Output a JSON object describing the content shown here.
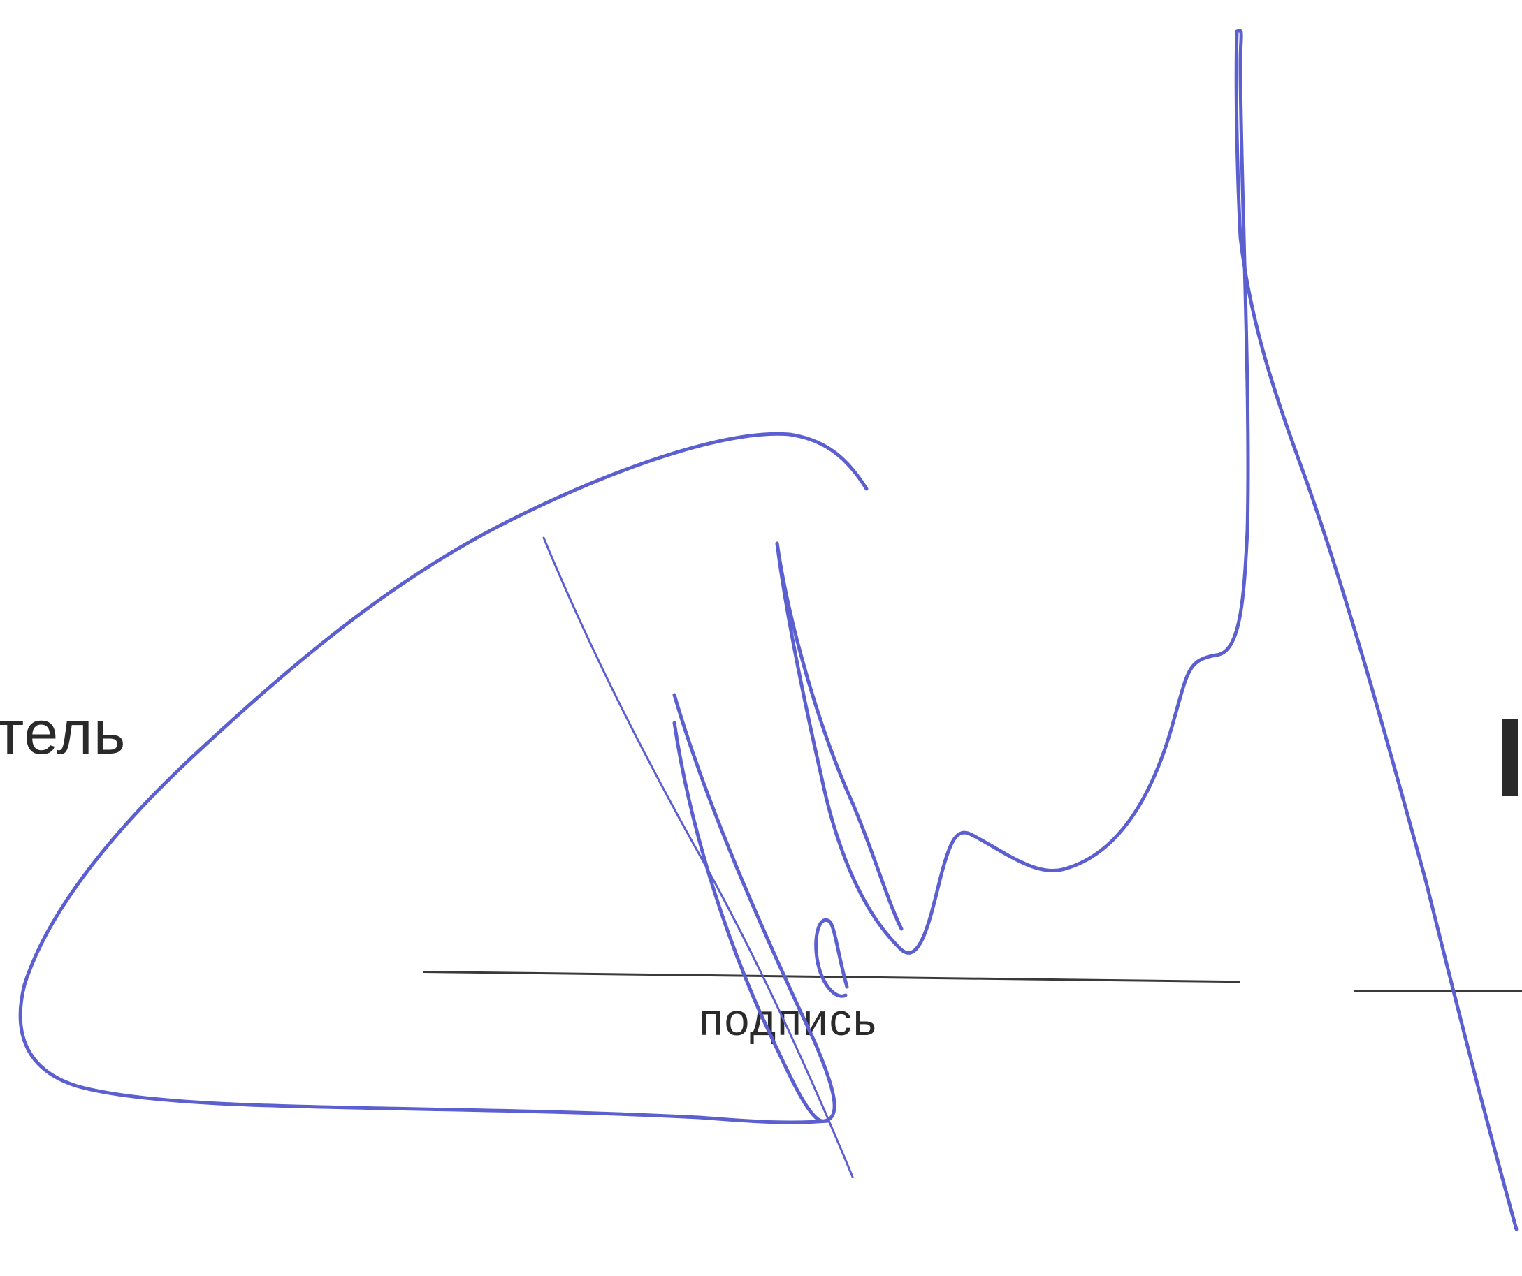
{
  "document": {
    "left_fragment": "тель",
    "signature_caption": "подпись"
  },
  "signature": {
    "ink_color": "#5b5fcf",
    "type": "handwritten-signature"
  }
}
